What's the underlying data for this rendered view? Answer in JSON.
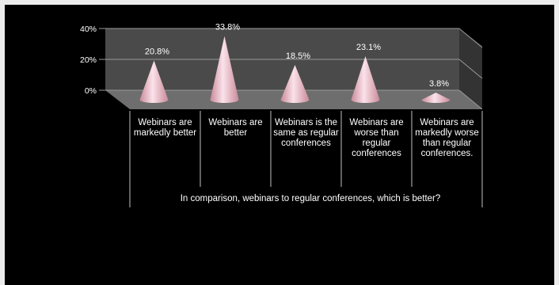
{
  "chart_data": {
    "type": "bar",
    "style": "3d-cone",
    "categories": [
      "Webinars are markedly better",
      "Webinars are better",
      "Webinars is the same as regular conferences",
      "Webinars are worse than regular conferences",
      "Webinars are markedly worse than regular conferences."
    ],
    "values": [
      20.8,
      33.8,
      18.5,
      23.1,
      3.8
    ],
    "data_labels": [
      "20.8%",
      "33.8%",
      "18.5%",
      "23.1%",
      "3.8%"
    ],
    "yticks": [
      "0%",
      "20%",
      "40%"
    ],
    "ylim": [
      0,
      40
    ],
    "xlabel": "In comparison, webinars to regular conferences, which is better?",
    "grid": true,
    "legend": "none",
    "colors": {
      "background": "#000000",
      "wall": "#4a4a4a",
      "floor": "#6e6e6e",
      "gridline": "#9a9a9a",
      "cone_light": "#fbe2ea",
      "cone_dark": "#c98a9a",
      "text": "#ffffff"
    }
  }
}
